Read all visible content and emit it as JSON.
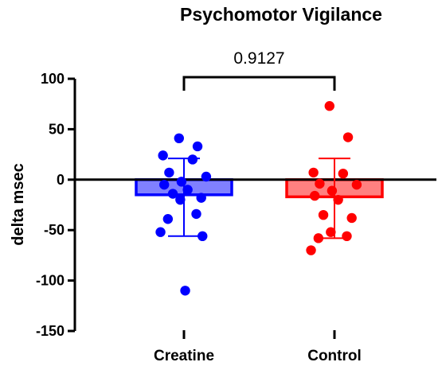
{
  "chart_data": {
    "type": "bar",
    "title": "Psychomotor Vigilance",
    "xlabel": "",
    "ylabel": "delta msec",
    "ylim": [
      -150,
      100
    ],
    "yticks": [
      100,
      50,
      0,
      -50,
      -100,
      -150
    ],
    "categories": [
      "Creatine",
      "Control"
    ],
    "grid": false,
    "legend": "none",
    "series": [
      {
        "category": "Creatine",
        "mean": -15,
        "sd_low": -56,
        "sd_high": 21,
        "bar_fill": "#8080ff",
        "bar_edge": "#0000ff",
        "color": "#0000ff",
        "points": [
          41,
          33,
          24,
          20,
          7,
          3,
          -2,
          -5,
          -10,
          -14,
          -18,
          -20,
          -34,
          -39,
          -52,
          -56,
          -110
        ]
      },
      {
        "category": "Control",
        "mean": -17,
        "sd_low": -58,
        "sd_high": 21,
        "bar_fill": "#ff8080",
        "bar_edge": "#ff0000",
        "color": "#ff0000",
        "points": [
          73,
          42,
          7,
          6,
          -4,
          -5,
          -11,
          -16,
          -20,
          -35,
          -38,
          -52,
          -56,
          -58,
          -70
        ]
      }
    ],
    "annotation": {
      "label": "0.9127",
      "between": [
        "Creatine",
        "Control"
      ]
    }
  }
}
